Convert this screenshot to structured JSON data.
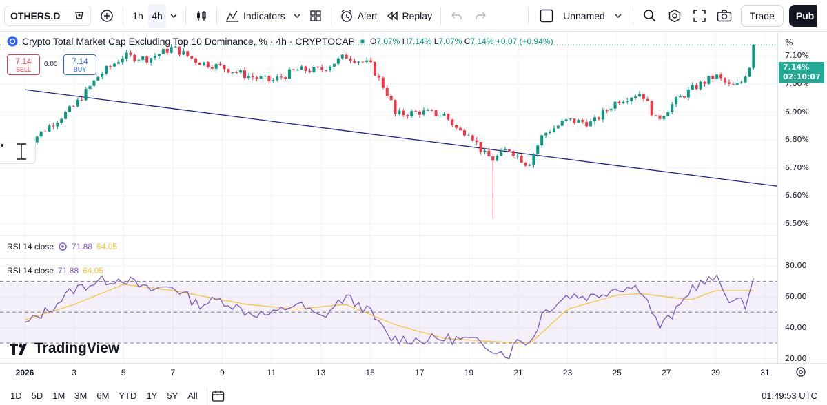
{
  "toolbar": {
    "symbol": "OTHERS.D",
    "intervals": [
      "1h",
      "4h"
    ],
    "active_interval": "4h",
    "indicators_label": "Indicators",
    "alert_label": "Alert",
    "replay_label": "Replay",
    "layout_name": "Unnamed",
    "trade_label": "Trade",
    "publish_label": "Pub"
  },
  "legend": {
    "title": "Crypto Total Market Cap Excluding Top 10 Dominance, % · 4h · CRYPTOCAP",
    "o_label": "O",
    "o_value": "7.07%",
    "h_label": "H",
    "h_value": "7.14%",
    "l_label": "L",
    "l_value": "7.07%",
    "c_label": "C",
    "c_value": "7.14%",
    "change": "+0.07 (+0.94%)"
  },
  "trade": {
    "sell_price": "7.14",
    "sell_label": "SELL",
    "spread": "0.00",
    "buy_price": "7.14",
    "buy_label": "BUY"
  },
  "price_axis": {
    "unit": "%",
    "ticks": [
      "7.10%",
      "7.00%",
      "6.90%",
      "6.80%",
      "6.70%",
      "6.60%",
      "6.50%"
    ],
    "current_price": "7.14%",
    "countdown": "02:10:07"
  },
  "rsi": {
    "label": "RSI 14 close",
    "rsi_value": "71.88",
    "ma_value": "64.05",
    "ticks": [
      "80.00",
      "60.00",
      "40.00",
      "20.00"
    ]
  },
  "time_axis": {
    "labels": [
      "2026",
      "3",
      "5",
      "7",
      "9",
      "11",
      "13",
      "15",
      "17",
      "19",
      "21",
      "23",
      "25",
      "27",
      "29",
      "31"
    ]
  },
  "bottom": {
    "ranges": [
      "1D",
      "5D",
      "1M",
      "3M",
      "6M",
      "YTD",
      "1Y",
      "5Y",
      "All"
    ],
    "clock": "01:49:53 UTC"
  },
  "brand": {
    "name": "TradingView"
  },
  "colors": {
    "up": "#089981",
    "down": "#f23645",
    "trendline": "#1c1f8a",
    "rsi": "#7e57c2",
    "rsi_ma": "#f7c32f",
    "rsi_band": "#7e57c2"
  },
  "chart_data": {
    "type": "candlestick",
    "symbol": "OTHERS.D",
    "interval": "4h",
    "ylim": [
      6.48,
      7.17
    ],
    "x_labels": [
      "2026",
      "3",
      "5",
      "7",
      "9",
      "11",
      "13",
      "15",
      "17",
      "19",
      "21",
      "23",
      "25",
      "27",
      "29",
      "31"
    ],
    "close_anchor_points": [
      {
        "x": 0,
        "y": 6.78
      },
      {
        "x": 2,
        "y": 6.92
      },
      {
        "x": 3,
        "y": 7.03
      },
      {
        "x": 4,
        "y": 7.1
      },
      {
        "x": 5,
        "y": 7.09
      },
      {
        "x": 6,
        "y": 7.13
      },
      {
        "x": 7,
        "y": 7.08
      },
      {
        "x": 8,
        "y": 7.06
      },
      {
        "x": 9,
        "y": 7.03
      },
      {
        "x": 10,
        "y": 7.01
      },
      {
        "x": 11,
        "y": 7.05
      },
      {
        "x": 12,
        "y": 7.05
      },
      {
        "x": 13,
        "y": 7.1
      },
      {
        "x": 14,
        "y": 7.07
      },
      {
        "x": 14.8,
        "y": 6.95
      },
      {
        "x": 15,
        "y": 6.89
      },
      {
        "x": 16,
        "y": 6.9
      },
      {
        "x": 17,
        "y": 6.89
      },
      {
        "x": 17.6,
        "y": 6.83
      },
      {
        "x": 18,
        "y": 6.83
      },
      {
        "x": 18.6,
        "y": 6.75
      },
      {
        "x": 19,
        "y": 6.73
      },
      {
        "x": 19.6,
        "y": 6.77
      },
      {
        "x": 20.4,
        "y": 6.71
      },
      {
        "x": 21,
        "y": 6.82
      },
      {
        "x": 22,
        "y": 6.87
      },
      {
        "x": 23,
        "y": 6.86
      },
      {
        "x": 24,
        "y": 6.94
      },
      {
        "x": 25,
        "y": 6.97
      },
      {
        "x": 25.6,
        "y": 6.87
      },
      {
        "x": 26.4,
        "y": 6.94
      },
      {
        "x": 27,
        "y": 6.98
      },
      {
        "x": 28,
        "y": 7.03
      },
      {
        "x": 28.6,
        "y": 6.99
      },
      {
        "x": 29,
        "y": 7.0
      },
      {
        "x": 29.4,
        "y": 7.07
      },
      {
        "x": 29.6,
        "y": 7.14
      }
    ],
    "lowest_wick": {
      "x": 19.0,
      "y": 6.52
    },
    "trendline": {
      "start": {
        "x": 0,
        "y": 6.98
      },
      "end": {
        "x": 31.8,
        "y": 6.62
      }
    },
    "last_close": 7.14,
    "rsi": {
      "ylim": [
        18,
        84
      ],
      "upper_band": 70,
      "lower_band": 30,
      "middle": 50,
      "anchor_points": [
        {
          "x": 0,
          "y": 42
        },
        {
          "x": 1,
          "y": 52
        },
        {
          "x": 2,
          "y": 65
        },
        {
          "x": 3,
          "y": 70
        },
        {
          "x": 4,
          "y": 72
        },
        {
          "x": 5,
          "y": 64
        },
        {
          "x": 6,
          "y": 67
        },
        {
          "x": 7,
          "y": 55
        },
        {
          "x": 8,
          "y": 58
        },
        {
          "x": 9,
          "y": 50
        },
        {
          "x": 10,
          "y": 48
        },
        {
          "x": 11,
          "y": 56
        },
        {
          "x": 12,
          "y": 46
        },
        {
          "x": 13,
          "y": 60
        },
        {
          "x": 14,
          "y": 50
        },
        {
          "x": 14.8,
          "y": 33
        },
        {
          "x": 16,
          "y": 32
        },
        {
          "x": 17,
          "y": 33
        },
        {
          "x": 18,
          "y": 32
        },
        {
          "x": 18.8,
          "y": 28
        },
        {
          "x": 19.6,
          "y": 22
        },
        {
          "x": 20,
          "y": 33
        },
        {
          "x": 20.5,
          "y": 30
        },
        {
          "x": 21,
          "y": 50
        },
        {
          "x": 22,
          "y": 61
        },
        {
          "x": 23,
          "y": 60
        },
        {
          "x": 24,
          "y": 66
        },
        {
          "x": 25,
          "y": 66
        },
        {
          "x": 25.7,
          "y": 40
        },
        {
          "x": 26.5,
          "y": 52
        },
        {
          "x": 27,
          "y": 66
        },
        {
          "x": 28,
          "y": 72
        },
        {
          "x": 28.6,
          "y": 58
        },
        {
          "x": 29.2,
          "y": 55
        },
        {
          "x": 29.6,
          "y": 71.88
        }
      ],
      "ma_anchor_points": [
        {
          "x": 0,
          "y": 45
        },
        {
          "x": 2,
          "y": 55
        },
        {
          "x": 4,
          "y": 68
        },
        {
          "x": 6,
          "y": 64
        },
        {
          "x": 9,
          "y": 55
        },
        {
          "x": 11,
          "y": 52
        },
        {
          "x": 13,
          "y": 55
        },
        {
          "x": 15,
          "y": 42
        },
        {
          "x": 17,
          "y": 33
        },
        {
          "x": 19,
          "y": 31
        },
        {
          "x": 20.5,
          "y": 30
        },
        {
          "x": 22,
          "y": 52
        },
        {
          "x": 24,
          "y": 61
        },
        {
          "x": 25,
          "y": 62
        },
        {
          "x": 26,
          "y": 60
        },
        {
          "x": 27,
          "y": 58
        },
        {
          "x": 28,
          "y": 64
        },
        {
          "x": 29.6,
          "y": 64.05
        }
      ]
    }
  }
}
